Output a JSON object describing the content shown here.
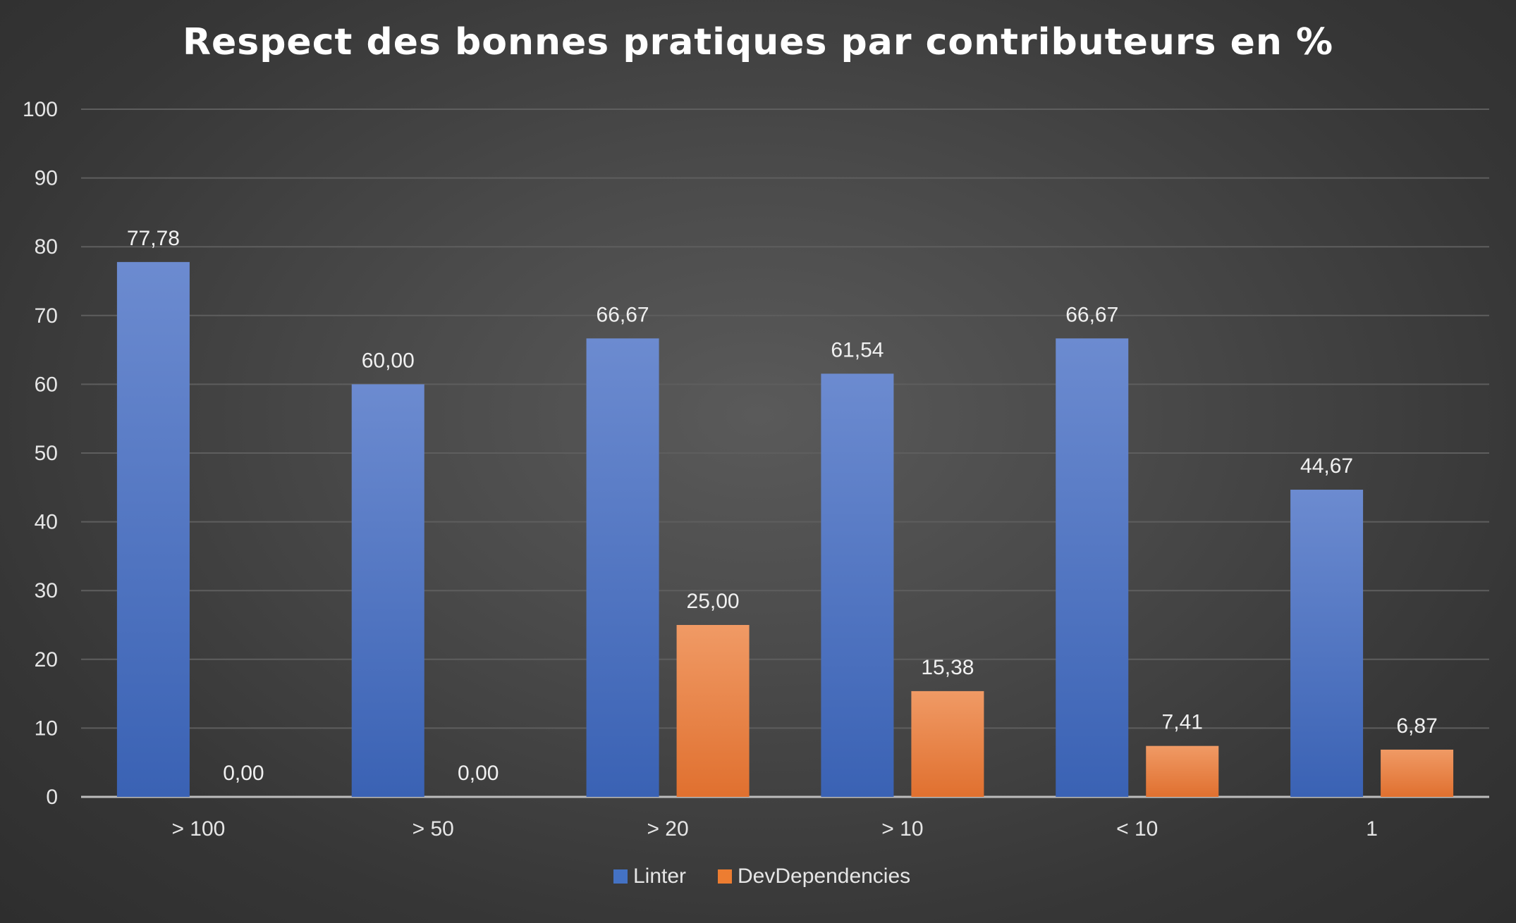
{
  "chart_data": {
    "type": "bar",
    "title": "Respect des bonnes pratiques par contributeurs en %",
    "categories": [
      "> 100",
      "> 50",
      "> 20",
      "> 10",
      "< 10",
      "1"
    ],
    "series": [
      {
        "name": "Linter",
        "values": [
          77.78,
          60.0,
          66.67,
          61.54,
          66.67,
          44.67
        ],
        "labels": [
          "77,78",
          "60,00",
          "66,67",
          "61,54",
          "66,67",
          "44,67"
        ],
        "color": "#4472C4"
      },
      {
        "name": "DevDependencies",
        "values": [
          0.0,
          0.0,
          25.0,
          15.38,
          7.41,
          6.87
        ],
        "labels": [
          "0,00",
          "0,00",
          "25,00",
          "15,38",
          "7,41",
          "6,87"
        ],
        "color": "#ED7D31"
      }
    ],
    "ylim": [
      0,
      100
    ],
    "yticks": [
      0,
      10,
      20,
      30,
      40,
      50,
      60,
      70,
      80,
      90,
      100
    ],
    "grid": true,
    "legend": "bottom-center",
    "background": "#404040"
  }
}
